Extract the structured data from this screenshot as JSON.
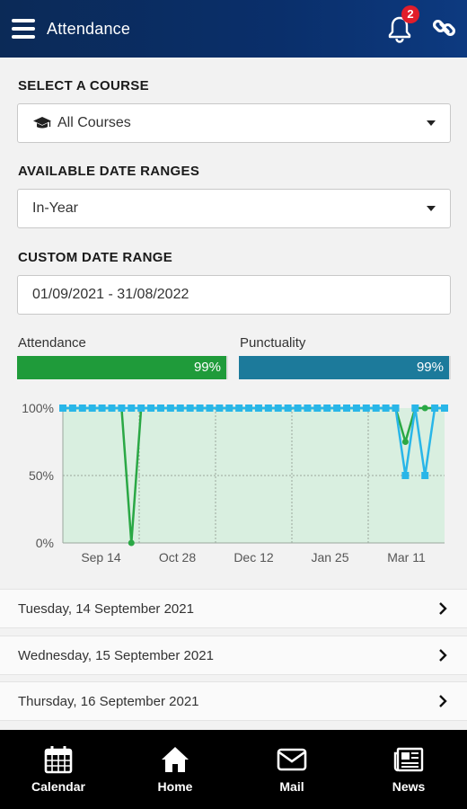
{
  "header": {
    "title": "Attendance",
    "notification_count": "2",
    "bell_icon": "bell-icon",
    "link_icon": "link-icon",
    "menu_icon": "hamburger-menu-icon"
  },
  "course": {
    "label": "SELECT A COURSE",
    "value": "All Courses",
    "icon": "graduation-cap-icon"
  },
  "date_ranges": {
    "label": "AVAILABLE DATE RANGES",
    "value": "In-Year"
  },
  "custom_range": {
    "label": "CUSTOM DATE RANGE",
    "value": "01/09/2021 - 31/08/2022"
  },
  "attendance": {
    "label": "Attendance",
    "percent_text": "99%",
    "value": 0.99,
    "color": "#1f9b3a"
  },
  "punctuality": {
    "label": "Punctuality",
    "percent_text": "99%",
    "value": 0.99,
    "color": "#1c7a9b"
  },
  "chart_data": {
    "type": "line",
    "y_ticks": [
      "100%",
      "50%",
      "0%"
    ],
    "x_ticks": [
      "Sep 14",
      "Oct 28",
      "Dec 12",
      "Jan 25",
      "Mar 11"
    ],
    "ylim": [
      0,
      100
    ],
    "grid": true,
    "series": [
      {
        "color": "#2aa845",
        "values": [
          100,
          100,
          100,
          100,
          100,
          100,
          100,
          0,
          100,
          100,
          100,
          100,
          100,
          100,
          100,
          100,
          100,
          100,
          100,
          100,
          100,
          100,
          100,
          100,
          100,
          100,
          100,
          100,
          100,
          100,
          100,
          100,
          100,
          100,
          100,
          75,
          100,
          100,
          100,
          100
        ]
      },
      {
        "color": "#29b6e8",
        "values": [
          100,
          100,
          100,
          100,
          100,
          100,
          100,
          100,
          100,
          100,
          100,
          100,
          100,
          100,
          100,
          100,
          100,
          100,
          100,
          100,
          100,
          100,
          100,
          100,
          100,
          100,
          100,
          100,
          100,
          100,
          100,
          100,
          100,
          100,
          100,
          50,
          100,
          50,
          100,
          100
        ]
      }
    ]
  },
  "days": [
    {
      "label": "Tuesday, 14 September 2021"
    },
    {
      "label": "Wednesday, 15 September 2021"
    },
    {
      "label": "Thursday, 16 September 2021"
    }
  ],
  "nav": [
    {
      "label": "Calendar",
      "icon": "calendar-icon"
    },
    {
      "label": "Home",
      "icon": "home-icon"
    },
    {
      "label": "Mail",
      "icon": "mail-icon"
    },
    {
      "label": "News",
      "icon": "news-icon"
    }
  ]
}
